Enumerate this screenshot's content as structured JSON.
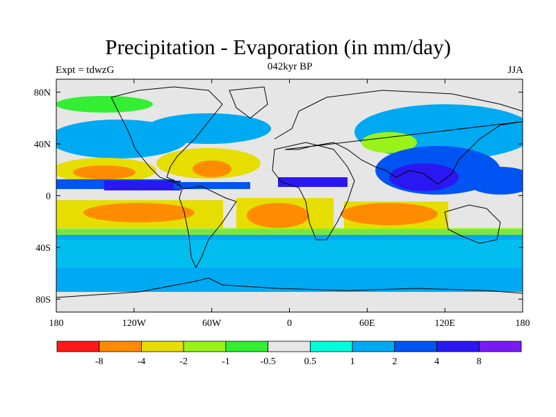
{
  "title": "Precipitation - Evaporation (in mm/day)",
  "subtitle_left": "Expt = tdwzG",
  "subtitle_center": "042kyr BP",
  "subtitle_right": "JJA",
  "map": {
    "projection": "cylindrical-equidistant",
    "lon_range": [
      -180,
      180
    ],
    "lat_range": [
      -90,
      90
    ],
    "x_ticks": [
      {
        "lon": -180,
        "label": "180"
      },
      {
        "lon": -120,
        "label": "120W"
      },
      {
        "lon": -60,
        "label": "60W"
      },
      {
        "lon": 0,
        "label": "0"
      },
      {
        "lon": 60,
        "label": "60E"
      },
      {
        "lon": 120,
        "label": "120E"
      },
      {
        "lon": 180,
        "label": "180"
      }
    ],
    "y_ticks": [
      {
        "lat": 80,
        "label": "80N"
      },
      {
        "lat": 40,
        "label": "40N"
      },
      {
        "lat": 0,
        "label": "0"
      },
      {
        "lat": -40,
        "label": "40S"
      },
      {
        "lat": -80,
        "label": "80S"
      }
    ]
  },
  "legend": {
    "colors": [
      "#ff1a1a",
      "#ff8c00",
      "#e6de00",
      "#99f21a",
      "#33ee33",
      "#e6e6e6",
      "#00ffd9",
      "#00aaf2",
      "#0055f2",
      "#2a18f2",
      "#7a1af2"
    ],
    "labels": [
      "-8",
      "-4",
      "-2",
      "-1",
      "-0.5",
      "0.5",
      "1",
      "2",
      "4",
      "8"
    ]
  }
}
